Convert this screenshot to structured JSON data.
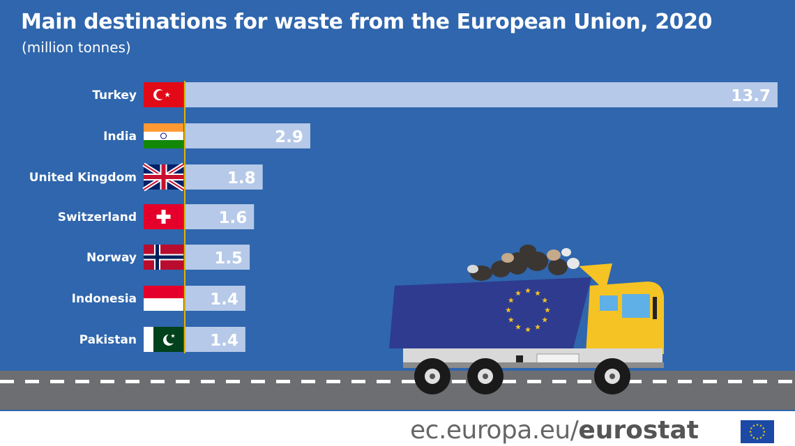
{
  "header": {
    "title": "Main destinations for waste from the European Union, 2020",
    "subtitle": "(million tonnes)"
  },
  "footer": {
    "site": "ec.europa.eu/",
    "brand": "eurostat"
  },
  "colors": {
    "background": "#2f66ad",
    "bar": "#b6c9e8",
    "bar_label": "#ffffff",
    "axis": "#e8b100",
    "road": "#6d6e71",
    "truck_cab": "#f6c324",
    "truck_bed": "#2e3b8f"
  },
  "icons": [
    "turkey-flag-icon",
    "india-flag-icon",
    "uk-flag-icon",
    "switzerland-flag-icon",
    "norway-flag-icon",
    "indonesia-flag-icon",
    "pakistan-flag-icon",
    "eu-flag-icon",
    "garbage-truck-icon"
  ],
  "chart_data": {
    "type": "bar",
    "orientation": "horizontal",
    "title": "Main destinations for waste from the European Union, 2020",
    "subtitle": "(million tonnes)",
    "categories": [
      "Turkey",
      "India",
      "United Kingdom",
      "Switzerland",
      "Norway",
      "Indonesia",
      "Pakistan"
    ],
    "values": [
      13.7,
      2.9,
      1.8,
      1.6,
      1.5,
      1.4,
      1.4
    ],
    "value_labels": [
      "13.7",
      "2.9",
      "1.8",
      "1.6",
      "1.5",
      "1.4",
      "1.4"
    ],
    "xlim": [
      0,
      13.7
    ],
    "grid": false,
    "legend": "none"
  }
}
